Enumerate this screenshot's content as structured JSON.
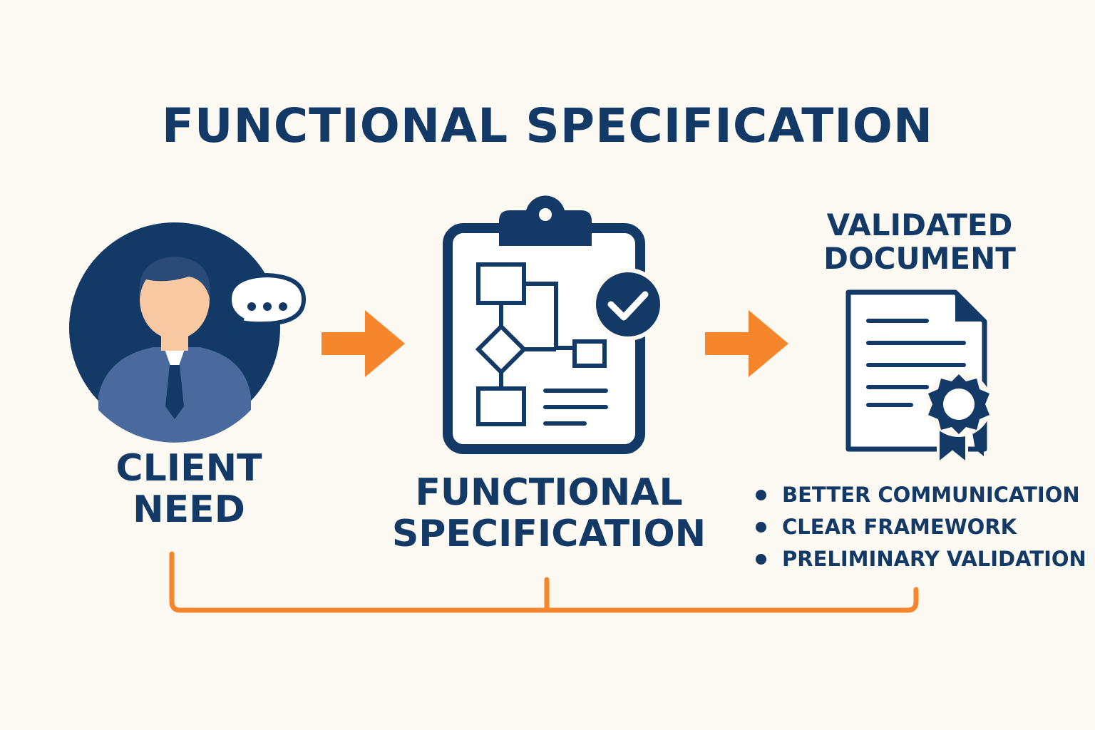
{
  "title": "FUNCTIONAL SPECIFICATION",
  "steps": [
    {
      "lines": [
        "CLIENT",
        "NEED"
      ],
      "icon": "client-speech-icon"
    },
    {
      "lines": [
        "FUNCTIONAL",
        "SPECIFICATION"
      ],
      "icon": "clipboard-flowchart-check-icon"
    },
    {
      "lines": [
        "VALIDATED",
        "DOCUMENT"
      ],
      "icon": "certified-document-icon"
    }
  ],
  "benefits": [
    "BETTER COMMUNICATION",
    "CLEAR FRAMEWORK",
    "PRELIMINARY VALIDATION"
  ],
  "colors": {
    "navy": "#133a66",
    "orange": "#f5862c",
    "background": "#fcf9f2",
    "suit": "#4a6a9e",
    "skin": "#f8c8a2"
  }
}
